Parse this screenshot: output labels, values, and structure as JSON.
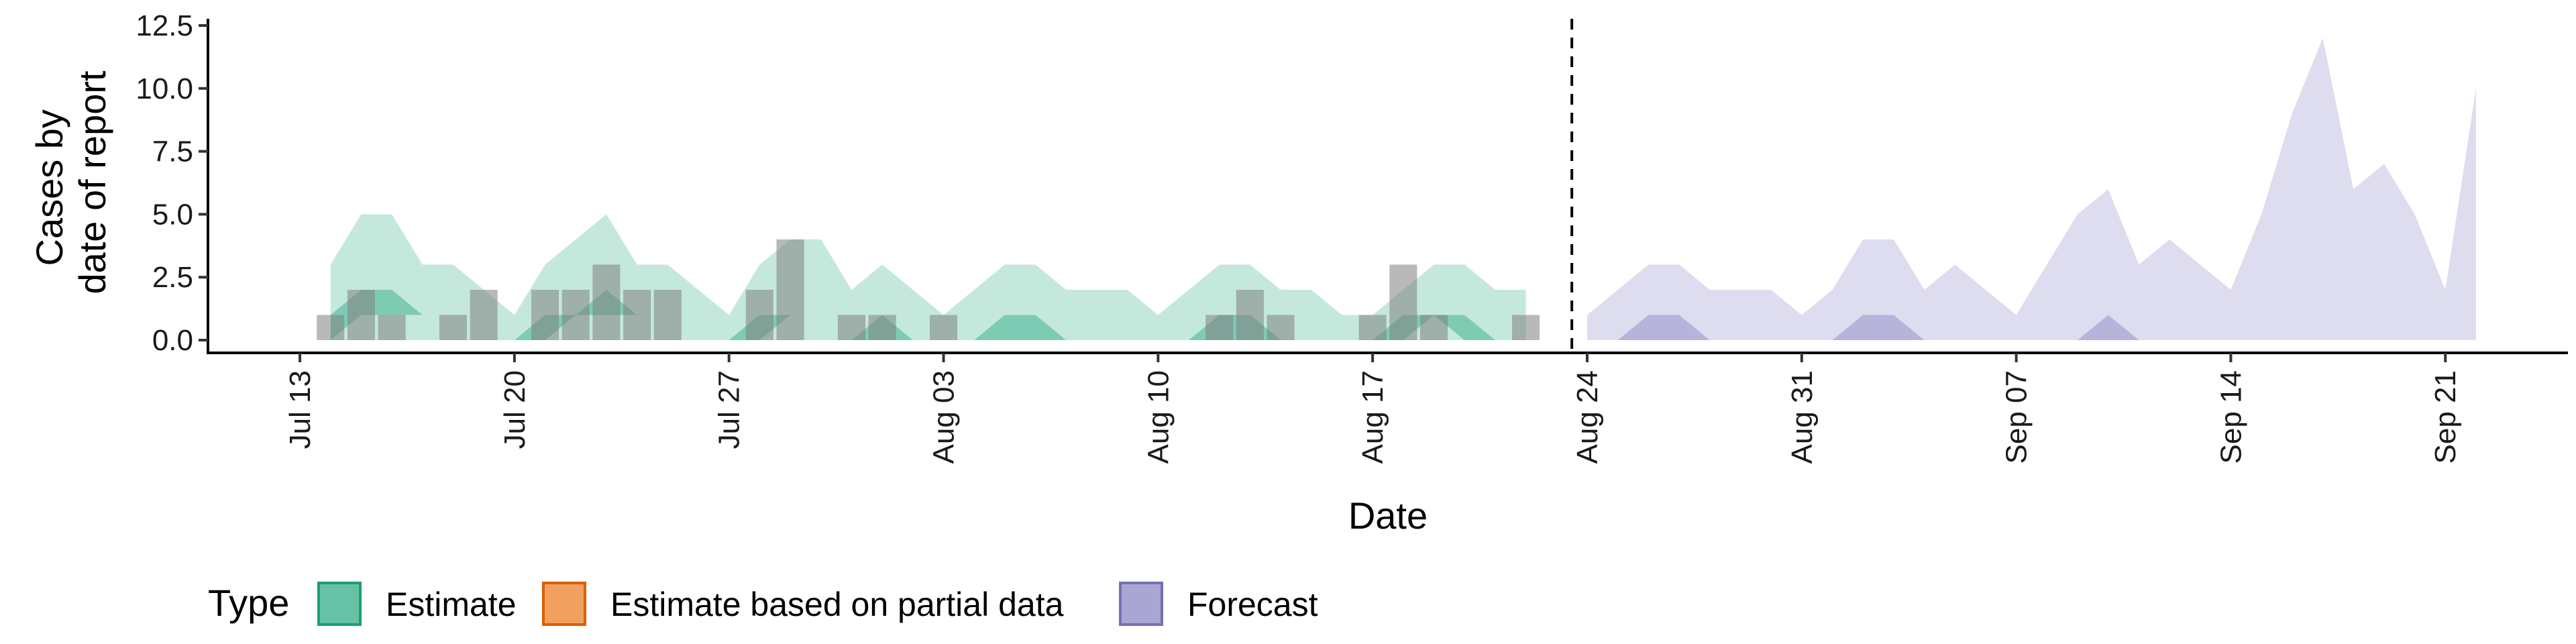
{
  "chart_data": {
    "type": "area",
    "xlabel": "Date",
    "ylabel_lines": [
      "Cases by",
      "date of report"
    ],
    "x_ticks": [
      {
        "date": "2020-07-13",
        "label": "Jul 13"
      },
      {
        "date": "2020-07-20",
        "label": "Jul 20"
      },
      {
        "date": "2020-07-27",
        "label": "Jul 27"
      },
      {
        "date": "2020-08-03",
        "label": "Aug 03"
      },
      {
        "date": "2020-08-10",
        "label": "Aug 10"
      },
      {
        "date": "2020-08-17",
        "label": "Aug 17"
      },
      {
        "date": "2020-08-24",
        "label": "Aug 24"
      },
      {
        "date": "2020-08-31",
        "label": "Aug 31"
      },
      {
        "date": "2020-09-07",
        "label": "Sep 07"
      },
      {
        "date": "2020-09-14",
        "label": "Sep 14"
      },
      {
        "date": "2020-09-21",
        "label": "Sep 21"
      }
    ],
    "y_ticks": [
      "0.0",
      "2.5",
      "5.0",
      "7.5",
      "10.0",
      "12.5"
    ],
    "ylim": [
      0,
      12.5
    ],
    "xlim": [
      "2020-07-10",
      "2020-09-25"
    ],
    "forecast_start": "2020-08-23",
    "grid": false,
    "legend": {
      "title": "Type",
      "position": "bottom",
      "items": [
        {
          "label": "Estimate",
          "fill": "#66c2a5",
          "stroke": "#1b9e77"
        },
        {
          "label": "Estimate based on partial data",
          "fill": "#f0a060",
          "stroke": "#d95f02"
        },
        {
          "label": "Forecast",
          "fill": "#a9a6d4",
          "stroke": "#7570b3"
        }
      ]
    },
    "observed_cases": {
      "dates": [
        "2020-07-14",
        "2020-07-15",
        "2020-07-16",
        "2020-07-17",
        "2020-07-18",
        "2020-07-19",
        "2020-07-20",
        "2020-07-21",
        "2020-07-22",
        "2020-07-23",
        "2020-07-24",
        "2020-07-25",
        "2020-07-26",
        "2020-07-27",
        "2020-07-28",
        "2020-07-29",
        "2020-07-30",
        "2020-07-31",
        "2020-08-01",
        "2020-08-02",
        "2020-08-03",
        "2020-08-04",
        "2020-08-05",
        "2020-08-06",
        "2020-08-07",
        "2020-08-08",
        "2020-08-09",
        "2020-08-10",
        "2020-08-11",
        "2020-08-12",
        "2020-08-13",
        "2020-08-14",
        "2020-08-15",
        "2020-08-16",
        "2020-08-17",
        "2020-08-18",
        "2020-08-19",
        "2020-08-20",
        "2020-08-21",
        "2020-08-22"
      ],
      "values": [
        1,
        2,
        1,
        0,
        1,
        2,
        0,
        2,
        2,
        3,
        2,
        2,
        0,
        0,
        2,
        4,
        0,
        1,
        1,
        0,
        1,
        0,
        0,
        0,
        0,
        0,
        0,
        0,
        0,
        1,
        2,
        1,
        0,
        0,
        1,
        3,
        1,
        0,
        0,
        1
      ]
    },
    "series": [
      {
        "name": "Estimate",
        "dates": [
          "2020-07-14",
          "2020-07-15",
          "2020-07-16",
          "2020-07-17",
          "2020-07-18",
          "2020-07-19",
          "2020-07-20",
          "2020-07-21",
          "2020-07-22",
          "2020-07-23",
          "2020-07-24",
          "2020-07-25",
          "2020-07-26",
          "2020-07-27",
          "2020-07-28",
          "2020-07-29",
          "2020-07-30",
          "2020-07-31",
          "2020-08-01",
          "2020-08-02",
          "2020-08-03",
          "2020-08-04",
          "2020-08-05",
          "2020-08-06",
          "2020-08-07",
          "2020-08-08",
          "2020-08-09",
          "2020-08-10",
          "2020-08-11",
          "2020-08-12",
          "2020-08-13",
          "2020-08-14",
          "2020-08-15",
          "2020-08-16",
          "2020-08-17",
          "2020-08-18",
          "2020-08-19",
          "2020-08-20",
          "2020-08-21",
          "2020-08-22"
        ],
        "outer_upper": [
          3,
          5,
          5,
          3,
          3,
          2,
          1,
          3,
          4,
          5,
          3,
          3,
          2,
          1,
          3,
          4,
          4,
          2,
          3,
          2,
          1,
          2,
          3,
          3,
          2,
          2,
          2,
          1,
          2,
          3,
          3,
          2,
          2,
          1,
          1,
          2,
          3,
          3,
          2,
          2
        ],
        "inner_lower": [
          0,
          1,
          1,
          1,
          1,
          0,
          0,
          0,
          1,
          1,
          1,
          1,
          0,
          0,
          0,
          1,
          1,
          0,
          0,
          0,
          0,
          0,
          0,
          0,
          0,
          0,
          0,
          0,
          0,
          0,
          0,
          0,
          0,
          0,
          0,
          0,
          1,
          0,
          0,
          0
        ],
        "inner_upper": [
          1,
          2,
          2,
          1,
          1,
          0,
          0,
          1,
          1,
          2,
          1,
          1,
          0,
          0,
          1,
          1,
          1,
          0,
          1,
          0,
          0,
          0,
          1,
          1,
          0,
          0,
          0,
          0,
          0,
          1,
          1,
          0,
          0,
          0,
          0,
          1,
          1,
          1,
          0,
          0
        ]
      },
      {
        "name": "Forecast",
        "dates": [
          "2020-08-24",
          "2020-08-25",
          "2020-08-26",
          "2020-08-27",
          "2020-08-28",
          "2020-08-29",
          "2020-08-30",
          "2020-08-31",
          "2020-09-01",
          "2020-09-02",
          "2020-09-03",
          "2020-09-04",
          "2020-09-05",
          "2020-09-06",
          "2020-09-07",
          "2020-09-08",
          "2020-09-09",
          "2020-09-10",
          "2020-09-11",
          "2020-09-12",
          "2020-09-13",
          "2020-09-14",
          "2020-09-15",
          "2020-09-16",
          "2020-09-17",
          "2020-09-18",
          "2020-09-19",
          "2020-09-20",
          "2020-09-21",
          "2020-09-22"
        ],
        "outer_upper": [
          1,
          2,
          3,
          3,
          2,
          2,
          2,
          1,
          2,
          4,
          4,
          2,
          3,
          2,
          1,
          3,
          5,
          6,
          3,
          4,
          3,
          2,
          5,
          9,
          12,
          6,
          7,
          5,
          2,
          10
        ],
        "inner_lower": [
          0,
          0,
          0,
          0,
          0,
          0,
          0,
          0,
          0,
          0,
          0,
          0,
          0,
          0,
          0,
          0,
          0,
          0,
          0,
          0,
          0,
          0,
          0,
          0,
          0,
          0,
          0,
          0,
          0,
          0
        ],
        "inner_upper": [
          0,
          0,
          1,
          1,
          0,
          0,
          0,
          0,
          0,
          1,
          1,
          0,
          0,
          0,
          0,
          0,
          0,
          1,
          0,
          0,
          0,
          0,
          0,
          0,
          0,
          0,
          0,
          0,
          0,
          0
        ]
      }
    ]
  }
}
